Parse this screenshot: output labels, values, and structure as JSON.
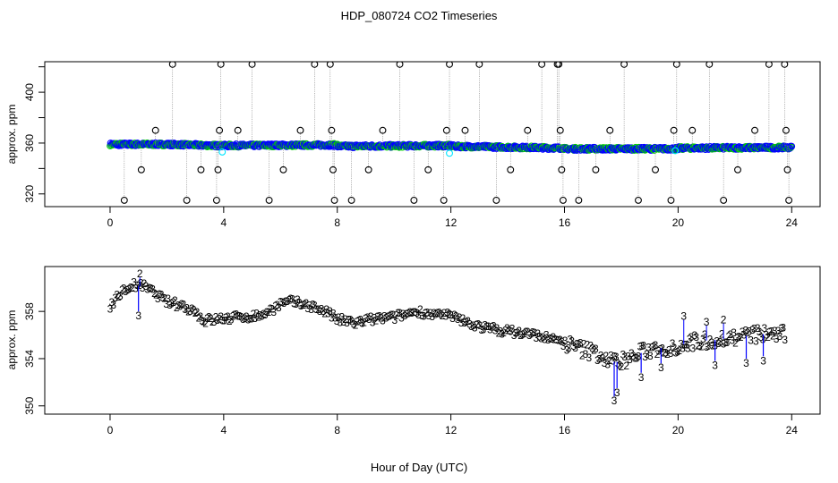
{
  "page": {
    "title": "HDP_080724  CO2 Timeseries",
    "xlabel": "Hour of Day (UTC)"
  },
  "colors": {
    "black": "#000000",
    "blue": "#0000ff",
    "cyan": "#00e5ff",
    "green": "#00cc00",
    "grey": "#888888"
  },
  "chart_data": [
    {
      "type": "scatter",
      "ylabel": "approx. ppm",
      "xlim": [
        -2.3,
        25.0
      ],
      "ylim": [
        310.0,
        424.0
      ],
      "xticks": [
        "0",
        "4",
        "8",
        "12",
        "16",
        "20",
        "24"
      ],
      "xtick_values": [
        0,
        4,
        8,
        12,
        16,
        20,
        24
      ],
      "yticks": [
        "320",
        "360",
        "400"
      ],
      "ytick_values": [
        320,
        360,
        400
      ],
      "baseline_segments": [
        {
          "x0": 0.0,
          "x1": 2.0,
          "y0": 359.0,
          "y1": 359.0
        },
        {
          "x0": 2.0,
          "x1": 3.8,
          "y0": 359.0,
          "y1": 358.0
        },
        {
          "x0": 3.8,
          "x1": 8.0,
          "y0": 358.0,
          "y1": 358.5
        },
        {
          "x0": 8.0,
          "x1": 12.0,
          "y0": 357.5,
          "y1": 358.0
        },
        {
          "x0": 12.0,
          "x1": 16.0,
          "y0": 357.5,
          "y1": 356.0
        },
        {
          "x0": 16.0,
          "x1": 20.0,
          "y0": 355.5,
          "y1": 355.5
        },
        {
          "x0": 20.0,
          "x1": 24.0,
          "y0": 356.0,
          "y1": 356.5
        }
      ],
      "calibration_points": [
        {
          "x": 0.5,
          "y": 315
        },
        {
          "x": 1.1,
          "y": 339
        },
        {
          "x": 1.6,
          "y": 370
        },
        {
          "x": 2.2,
          "y": 422
        },
        {
          "x": 2.7,
          "y": 315
        },
        {
          "x": 3.2,
          "y": 339
        },
        {
          "x": 3.75,
          "y": 315
        },
        {
          "x": 3.8,
          "y": 339
        },
        {
          "x": 3.85,
          "y": 370
        },
        {
          "x": 3.9,
          "y": 422
        },
        {
          "x": 4.5,
          "y": 370
        },
        {
          "x": 5.0,
          "y": 422
        },
        {
          "x": 5.6,
          "y": 315
        },
        {
          "x": 6.1,
          "y": 339
        },
        {
          "x": 6.7,
          "y": 370
        },
        {
          "x": 7.2,
          "y": 422
        },
        {
          "x": 7.75,
          "y": 422
        },
        {
          "x": 7.8,
          "y": 370
        },
        {
          "x": 7.85,
          "y": 339
        },
        {
          "x": 7.9,
          "y": 315
        },
        {
          "x": 8.5,
          "y": 315
        },
        {
          "x": 9.1,
          "y": 339
        },
        {
          "x": 9.6,
          "y": 370
        },
        {
          "x": 10.2,
          "y": 422
        },
        {
          "x": 10.7,
          "y": 315
        },
        {
          "x": 11.2,
          "y": 339
        },
        {
          "x": 11.75,
          "y": 315
        },
        {
          "x": 11.85,
          "y": 370
        },
        {
          "x": 11.95,
          "y": 422
        },
        {
          "x": 12.5,
          "y": 370
        },
        {
          "x": 13.0,
          "y": 422
        },
        {
          "x": 13.6,
          "y": 315
        },
        {
          "x": 14.1,
          "y": 339
        },
        {
          "x": 14.7,
          "y": 370
        },
        {
          "x": 15.2,
          "y": 422
        },
        {
          "x": 15.75,
          "y": 422
        },
        {
          "x": 15.8,
          "y": 422
        },
        {
          "x": 15.85,
          "y": 370
        },
        {
          "x": 15.9,
          "y": 339
        },
        {
          "x": 15.95,
          "y": 315
        },
        {
          "x": 16.5,
          "y": 315
        },
        {
          "x": 17.1,
          "y": 339
        },
        {
          "x": 17.6,
          "y": 370
        },
        {
          "x": 18.1,
          "y": 422
        },
        {
          "x": 18.6,
          "y": 315
        },
        {
          "x": 19.2,
          "y": 339
        },
        {
          "x": 19.75,
          "y": 315
        },
        {
          "x": 19.85,
          "y": 370
        },
        {
          "x": 19.95,
          "y": 422
        },
        {
          "x": 20.5,
          "y": 370
        },
        {
          "x": 21.1,
          "y": 422
        },
        {
          "x": 21.6,
          "y": 315
        },
        {
          "x": 22.1,
          "y": 339
        },
        {
          "x": 22.7,
          "y": 370
        },
        {
          "x": 23.2,
          "y": 422
        },
        {
          "x": 23.75,
          "y": 422
        },
        {
          "x": 23.8,
          "y": 370
        },
        {
          "x": 23.85,
          "y": 339
        },
        {
          "x": 23.9,
          "y": 315
        }
      ],
      "cyan_points": [
        {
          "x": 3.95,
          "y": 353
        },
        {
          "x": 11.95,
          "y": 352
        },
        {
          "x": 19.9,
          "y": 354
        }
      ]
    },
    {
      "type": "scatter",
      "ylabel": "approx. ppm",
      "xlim": [
        -2.3,
        25.0
      ],
      "ylim": [
        349.3,
        361.8
      ],
      "xticks": [
        "0",
        "4",
        "8",
        "12",
        "16",
        "20",
        "24"
      ],
      "xtick_values": [
        0,
        4,
        8,
        12,
        16,
        20,
        24
      ],
      "yticks": [
        "350",
        "354",
        "358"
      ],
      "ytick_values": [
        350,
        354,
        358
      ],
      "marker_labels": [
        "2",
        "3"
      ],
      "series_trend": [
        {
          "x": 0.0,
          "y": 358.5
        },
        {
          "x": 0.4,
          "y": 359.6
        },
        {
          "x": 0.8,
          "y": 360.2
        },
        {
          "x": 1.2,
          "y": 360.1
        },
        {
          "x": 1.6,
          "y": 359.5
        },
        {
          "x": 2.0,
          "y": 358.8
        },
        {
          "x": 2.5,
          "y": 358.5
        },
        {
          "x": 3.0,
          "y": 358.0
        },
        {
          "x": 3.3,
          "y": 357.2
        },
        {
          "x": 3.7,
          "y": 357.3
        },
        {
          "x": 4.5,
          "y": 357.5
        },
        {
          "x": 5.2,
          "y": 357.6
        },
        {
          "x": 5.6,
          "y": 358.0
        },
        {
          "x": 6.0,
          "y": 358.6
        },
        {
          "x": 6.4,
          "y": 358.8
        },
        {
          "x": 7.0,
          "y": 358.5
        },
        {
          "x": 7.6,
          "y": 358.0
        },
        {
          "x": 8.0,
          "y": 357.3
        },
        {
          "x": 8.6,
          "y": 357.0
        },
        {
          "x": 9.2,
          "y": 357.3
        },
        {
          "x": 10.0,
          "y": 357.5
        },
        {
          "x": 10.8,
          "y": 358.0
        },
        {
          "x": 11.5,
          "y": 357.7
        },
        {
          "x": 12.0,
          "y": 357.6
        },
        {
          "x": 12.6,
          "y": 357.0
        },
        {
          "x": 13.2,
          "y": 356.6
        },
        {
          "x": 14.0,
          "y": 356.3
        },
        {
          "x": 15.0,
          "y": 356.0
        },
        {
          "x": 15.6,
          "y": 355.6
        },
        {
          "x": 16.0,
          "y": 355.3
        },
        {
          "x": 16.6,
          "y": 354.8
        },
        {
          "x": 17.1,
          "y": 354.5
        },
        {
          "x": 17.5,
          "y": 353.9
        },
        {
          "x": 17.8,
          "y": 353.7
        },
        {
          "x": 18.3,
          "y": 354.0
        },
        {
          "x": 18.8,
          "y": 354.6
        },
        {
          "x": 19.3,
          "y": 354.9
        },
        {
          "x": 19.8,
          "y": 354.9
        },
        {
          "x": 20.3,
          "y": 355.3
        },
        {
          "x": 20.8,
          "y": 355.5
        },
        {
          "x": 21.4,
          "y": 355.6
        },
        {
          "x": 22.0,
          "y": 355.8
        },
        {
          "x": 22.6,
          "y": 356.0
        },
        {
          "x": 23.2,
          "y": 356.1
        },
        {
          "x": 23.8,
          "y": 356.0
        }
      ],
      "dips": [
        {
          "x": 1.0,
          "y": 358.0
        },
        {
          "x": 17.75,
          "y": 350.8
        },
        {
          "x": 17.85,
          "y": 351.5
        },
        {
          "x": 18.7,
          "y": 352.8
        },
        {
          "x": 19.4,
          "y": 353.6
        },
        {
          "x": 21.3,
          "y": 353.8
        },
        {
          "x": 22.4,
          "y": 354.0
        },
        {
          "x": 23.0,
          "y": 354.2
        }
      ],
      "peaks": [
        {
          "x": 1.05,
          "y": 360.9
        },
        {
          "x": 20.2,
          "y": 357.3
        },
        {
          "x": 21.6,
          "y": 357.0
        },
        {
          "x": 21.0,
          "y": 356.8
        }
      ]
    }
  ]
}
